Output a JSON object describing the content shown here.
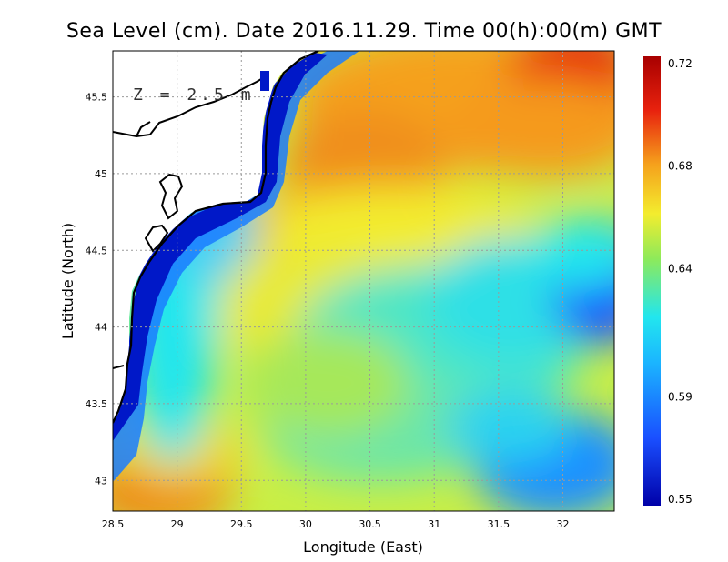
{
  "title": "Sea Level (cm). Date 2016.11.29. Time 00(h):00(m) GMT",
  "depth_label": "Z = 2.5 m",
  "xlabel": "Longitude (East)",
  "ylabel": "Latitude (North)",
  "x_ticks": [
    "28.5",
    "29",
    "29.5",
    "30",
    "30.5",
    "31",
    "31.5",
    "32"
  ],
  "y_ticks": [
    "43",
    "43.5",
    "44",
    "44.5",
    "45",
    "45.5"
  ],
  "colorbar_ticks": [
    "0.72",
    "0.68",
    "0.64",
    "0.59",
    "0.55"
  ],
  "colors": {
    "low": "#0000a8",
    "blue": "#1a4fff",
    "cyan": "#22e6ee",
    "green": "#8eea5a",
    "yellow": "#f3ec2e",
    "orange": "#f5a11c",
    "red": "#e8220e",
    "high": "#a80000",
    "grid": "#9a9a9a",
    "coast": "#000000"
  },
  "chart_data": {
    "type": "heatmap",
    "title": "Sea Level (cm). Date 2016.11.29. Time 00(h):00(m) GMT",
    "xlabel": "Longitude (East)",
    "ylabel": "Latitude (North)",
    "xlim": [
      28.5,
      32.4
    ],
    "ylim": [
      42.8,
      45.8
    ],
    "colorbar_range": [
      0.55,
      0.72
    ],
    "colorbar_ticks": [
      0.72,
      0.68,
      0.64,
      0.59,
      0.55
    ],
    "grid": true,
    "features": [
      {
        "region": "northeast corner",
        "lon": 32.3,
        "lat": 45.7,
        "value": 0.72
      },
      {
        "region": "central north",
        "lon": 30.5,
        "lat": 45.1,
        "value": 0.68
      },
      {
        "region": "southwest corner",
        "lon": 28.8,
        "lat": 42.9,
        "value": 0.69
      },
      {
        "region": "east low",
        "lon": 32.3,
        "lat": 44.3,
        "value": 0.59
      },
      {
        "region": "west coastal band",
        "lon": 28.7,
        "lat": 44.0,
        "value": 0.55
      },
      {
        "region": "central",
        "lon": 30.5,
        "lat": 44.0,
        "value": 0.64
      }
    ]
  }
}
